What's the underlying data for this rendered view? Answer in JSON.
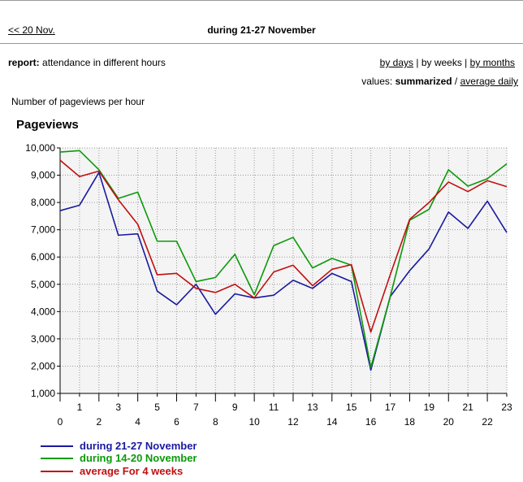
{
  "nav": {
    "prev_link": "<< 20 Nov.",
    "period_title": "during 21-27 November"
  },
  "report": {
    "label": "report:",
    "text": "attendance in different hours"
  },
  "modes": {
    "by_days": "by days",
    "sep1": " | ",
    "by_weeks": "by weeks",
    "sep2": " | ",
    "by_months": "by months"
  },
  "values": {
    "label": "values:",
    "summarized": "summarized",
    "sep": " / ",
    "average_daily": "average daily"
  },
  "caption": "Number of pageviews per hour",
  "chart_data": {
    "type": "line",
    "title": "Pageviews",
    "xlabel": "",
    "ylabel": "",
    "x": [
      0,
      1,
      2,
      3,
      4,
      5,
      6,
      7,
      8,
      9,
      10,
      11,
      12,
      13,
      14,
      15,
      16,
      17,
      18,
      19,
      20,
      21,
      22,
      23
    ],
    "ylim": [
      1000,
      10000
    ],
    "yticks": [
      "1,000",
      "2,000",
      "3,000",
      "4,000",
      "5,000",
      "6,000",
      "7,000",
      "8,000",
      "9,000",
      "10,000"
    ],
    "grid": true,
    "legend_position": "bottom-left",
    "series": [
      {
        "name": "during 21-27 November",
        "color": "#1a1aa0",
        "values": [
          7700,
          7900,
          9100,
          6800,
          6850,
          4750,
          4250,
          5000,
          3900,
          4650,
          4500,
          4600,
          5150,
          4850,
          5400,
          5100,
          1850,
          4550,
          5500,
          6300,
          7650,
          7050,
          8050,
          6900
        ]
      },
      {
        "name": "during 14-20 November",
        "color": "#0a9a0a",
        "values": [
          9850,
          9900,
          9200,
          8150,
          8380,
          6580,
          6580,
          5100,
          5250,
          6100,
          4620,
          6420,
          6720,
          5600,
          5950,
          5700,
          1950,
          4550,
          7350,
          7750,
          9200,
          8600,
          8870,
          9420
        ]
      },
      {
        "name": "average For 4 weeks",
        "color": "#c01010",
        "values": [
          9550,
          8950,
          9150,
          8100,
          7200,
          5350,
          5400,
          4850,
          4700,
          5000,
          4500,
          5450,
          5700,
          4950,
          5550,
          5720,
          3250,
          5350,
          7380,
          8000,
          8750,
          8400,
          8800,
          8580
        ]
      }
    ]
  }
}
